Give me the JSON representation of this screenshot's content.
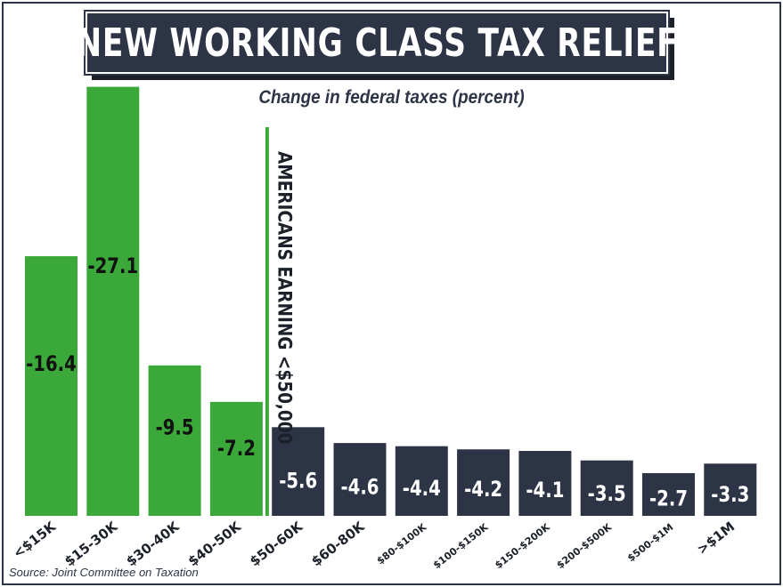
{
  "header": {
    "title": "NEW WORKING CLASS TAX RELIEF",
    "subtitle": "Change in federal taxes (percent)"
  },
  "annotation": "AMERICANS EARNING <$50,000",
  "source": "Source: Joint Committee on Taxation",
  "colors": {
    "green": "#3aa93a",
    "navy": "#2d3445",
    "label_light": "#ffffff",
    "label_dark": "#111111"
  },
  "chart_data": {
    "type": "bar",
    "title": "NEW WORKING CLASS TAX RELIEF",
    "subtitle": "Change in federal taxes (percent)",
    "categories": [
      "<$15K",
      "$15-30K",
      "$30-40K",
      "$40-50K",
      "$50-60K",
      "$60-80K",
      "$80-$100K",
      "$100-$150K",
      "$150-$200K",
      "$200-$500K",
      "$500-$1M",
      ">$1M"
    ],
    "values": [
      -16.4,
      -27.1,
      -9.5,
      -7.2,
      -5.6,
      -4.6,
      -4.4,
      -4.2,
      -4.1,
      -3.5,
      -2.7,
      -3.3
    ],
    "value_labels": [
      "-16.4",
      "-27.1",
      "-9.5",
      "-7.2",
      "-5.6",
      "-4.6",
      "-4.4",
      "-4.2",
      "-4.1",
      "-3.5",
      "-2.7",
      "-3.3"
    ],
    "group_highlight": {
      "label": "AMERICANS EARNING <$50,000",
      "categories": [
        "<$15K",
        "$15-30K",
        "$30-40K",
        "$40-50K"
      ]
    },
    "xlabel": "",
    "ylabel": "",
    "grid": false,
    "legend": "none"
  }
}
